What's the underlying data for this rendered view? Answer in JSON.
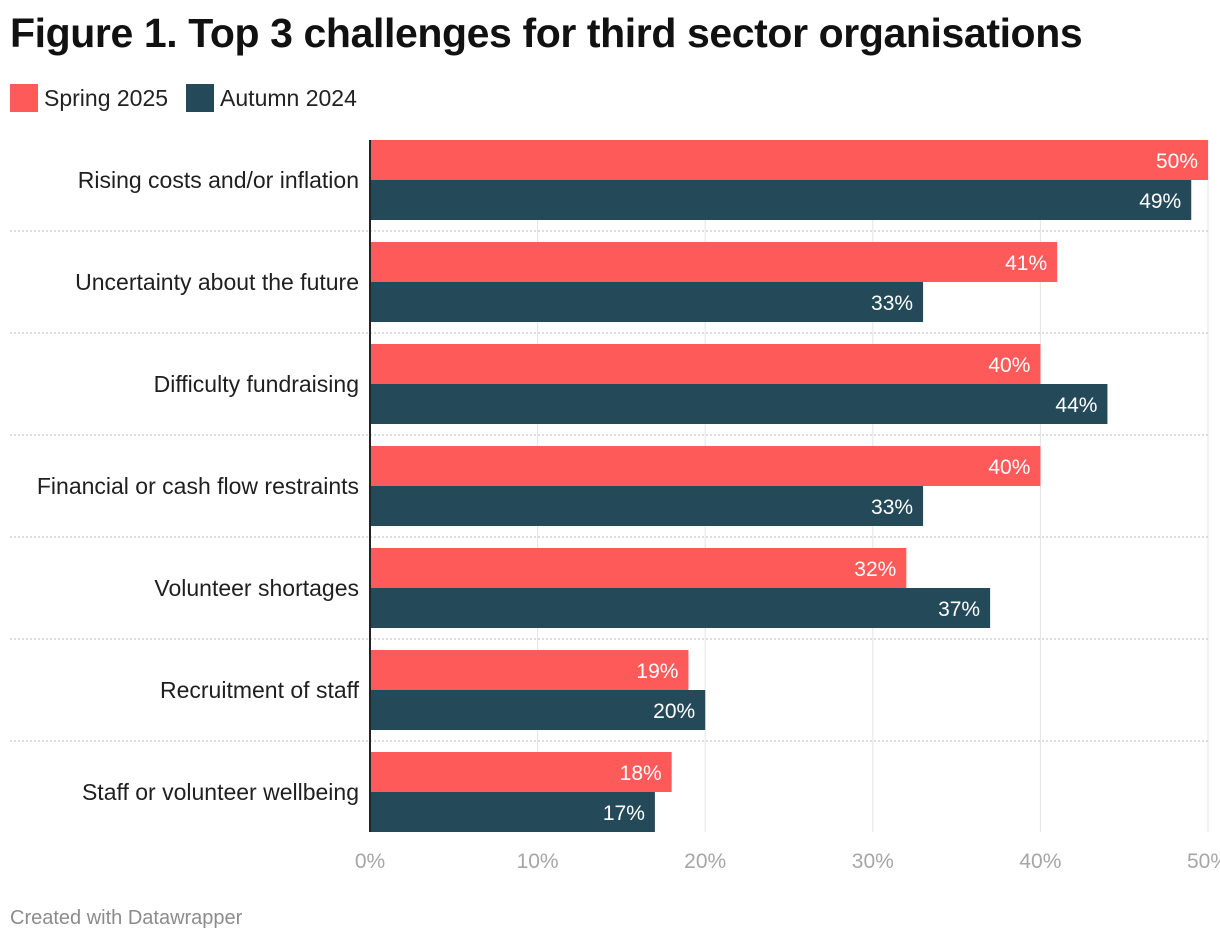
{
  "title": "Figure 1. Top 3 challenges for third sector organisations",
  "footer": "Created with Datawrapper",
  "legend": [
    {
      "label": "Spring 2025",
      "color": "#ff5a5a"
    },
    {
      "label": "Autumn 2024",
      "color": "#244a5a"
    }
  ],
  "chart_data": {
    "type": "bar",
    "orientation": "horizontal",
    "categories": [
      "Rising costs and/or inflation",
      "Uncertainty about the future",
      "Difficulty fundraising",
      "Financial or cash flow restraints",
      "Volunteer shortages",
      "Recruitment of staff",
      "Staff or volunteer wellbeing"
    ],
    "series": [
      {
        "name": "Spring 2025",
        "color": "#ff5a5a",
        "values": [
          50,
          41,
          40,
          40,
          32,
          19,
          18
        ]
      },
      {
        "name": "Autumn 2024",
        "color": "#244a5a",
        "values": [
          49,
          33,
          44,
          33,
          37,
          20,
          17
        ]
      }
    ],
    "xlim": [
      0,
      50
    ],
    "x_ticks": [
      "0%",
      "10%",
      "20%",
      "30%",
      "40%",
      "50%"
    ],
    "value_suffix": "%",
    "grid": true,
    "legend_position": "top-left"
  }
}
